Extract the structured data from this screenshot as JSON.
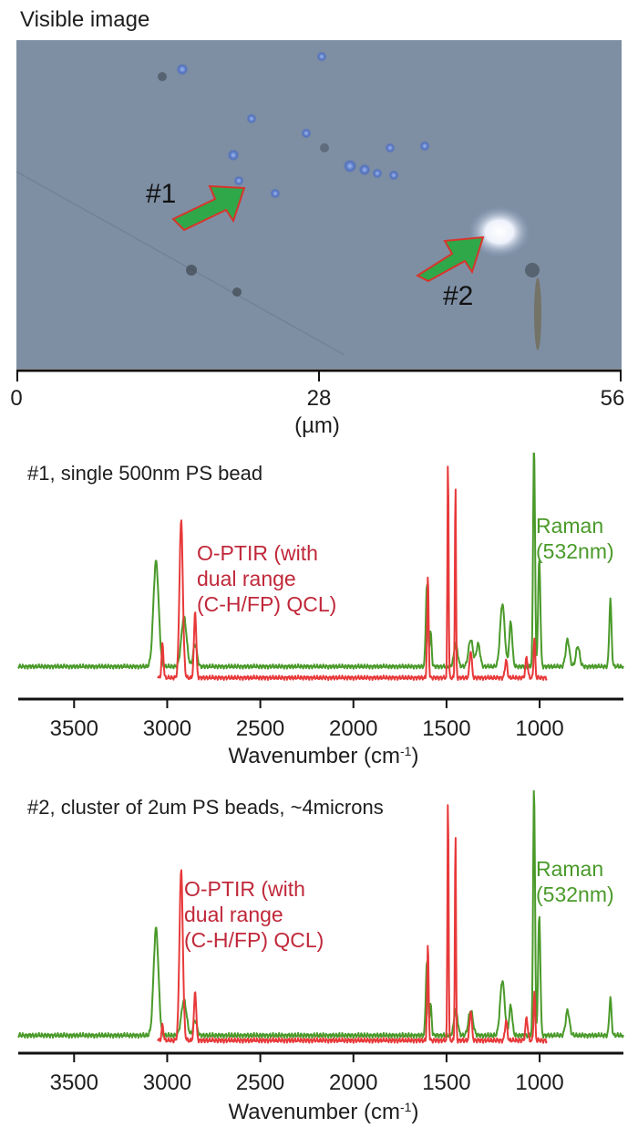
{
  "micro": {
    "title": "Visible image",
    "label1": "#1",
    "label2": "#2",
    "scale_ticks": [
      "0",
      "28",
      "56"
    ],
    "scale_unit": "(µm)",
    "colors": {
      "background": "#7e8fa4",
      "arrow_fill": "#2fa84a",
      "arrow_stroke": "#d8352b"
    }
  },
  "chart_data": [
    {
      "type": "line",
      "title": "#1, single 500nm PS bead",
      "xlabel": "Wavenumber (cm",
      "xlabel_sup": "-1",
      "xlabel_end": ")",
      "xlim": [
        3800,
        550
      ],
      "x_reversed": true,
      "ticks": [
        "3500",
        "3000",
        "2500",
        "2000",
        "1500",
        "1000"
      ],
      "tick_values": [
        3500,
        3000,
        2500,
        2000,
        1500,
        1000
      ],
      "annotations": {
        "red": [
          "O-PTIR (with",
          "dual range",
          "(C-H/FP) QCL)"
        ],
        "green": [
          "Raman",
          "(532nm)"
        ]
      },
      "series": [
        {
          "name": "Raman (532nm)",
          "color": "#4a9a2a",
          "peaks": [
            [
              3060,
              0.47,
              14
            ],
            [
              2910,
              0.22,
              14
            ],
            [
              2850,
              0.1,
              10
            ],
            [
              1605,
              0.37,
              6
            ],
            [
              1585,
              0.15,
              5
            ],
            [
              1450,
              0.1,
              10
            ],
            [
              1370,
              0.12,
              12
            ],
            [
              1330,
              0.1,
              10
            ],
            [
              1200,
              0.28,
              12
            ],
            [
              1155,
              0.2,
              8
            ],
            [
              1030,
              1.0,
              5
            ],
            [
              1002,
              0.48,
              6
            ],
            [
              850,
              0.12,
              10
            ],
            [
              795,
              0.09,
              10
            ],
            [
              620,
              0.3,
              6
            ]
          ],
          "base": 0.08,
          "range": [
            3800,
            550
          ]
        },
        {
          "name": "O-PTIR (with dual range (C-H/FP) QCL)",
          "color": "#e8393a",
          "peaks": [
            [
              3025,
              0.15,
              5
            ],
            [
              2925,
              0.7,
              9
            ],
            [
              2850,
              0.3,
              6
            ],
            [
              1600,
              0.45,
              4
            ],
            [
              1492,
              1.0,
              3
            ],
            [
              1452,
              0.88,
              3
            ],
            [
              1370,
              0.12,
              6
            ],
            [
              1180,
              0.08,
              6
            ],
            [
              1070,
              0.09,
              6
            ],
            [
              1028,
              0.18,
              4
            ]
          ],
          "base": 0.03,
          "range": [
            3050,
            960
          ]
        }
      ]
    },
    {
      "type": "line",
      "title": "#2, cluster of 2um PS beads, ~4microns",
      "xlabel": "Wavenumber (cm",
      "xlabel_sup": "-1",
      "xlabel_end": ")",
      "xlim": [
        3800,
        550
      ],
      "x_reversed": true,
      "ticks": [
        "3500",
        "3000",
        "2500",
        "2000",
        "1500",
        "1000"
      ],
      "tick_values": [
        3500,
        3000,
        2500,
        2000,
        1500,
        1000
      ],
      "annotations": {
        "red": [
          "O-PTIR (with",
          "dual range",
          "(C-H/FP) QCL)"
        ],
        "green": [
          "Raman",
          "(532nm)"
        ]
      },
      "series": [
        {
          "name": "Raman (532nm)",
          "color": "#4a9a2a",
          "peaks": [
            [
              3060,
              0.43,
              13
            ],
            [
              2910,
              0.14,
              14
            ],
            [
              2850,
              0.06,
              10
            ],
            [
              1605,
              0.3,
              6
            ],
            [
              1585,
              0.12,
              5
            ],
            [
              1450,
              0.1,
              10
            ],
            [
              1370,
              0.1,
              12
            ],
            [
              1200,
              0.22,
              12
            ],
            [
              1155,
              0.12,
              8
            ],
            [
              1030,
              1.0,
              5
            ],
            [
              1002,
              0.48,
              6
            ],
            [
              850,
              0.1,
              10
            ],
            [
              620,
              0.15,
              6
            ]
          ],
          "base": 0.02,
          "range": [
            3800,
            550
          ]
        },
        {
          "name": "O-PTIR (with dual range (C-H/FP) QCL)",
          "color": "#e8393a",
          "peaks": [
            [
              3025,
              0.06,
              5
            ],
            [
              2925,
              0.68,
              9
            ],
            [
              2850,
              0.2,
              6
            ],
            [
              1600,
              0.38,
              4
            ],
            [
              1492,
              1.0,
              3
            ],
            [
              1452,
              0.85,
              3
            ],
            [
              1370,
              0.12,
              6
            ],
            [
              1180,
              0.08,
              6
            ],
            [
              1070,
              0.09,
              6
            ],
            [
              1028,
              0.2,
              4
            ]
          ],
          "base": 0.0,
          "range": [
            3050,
            960
          ]
        }
      ]
    }
  ]
}
